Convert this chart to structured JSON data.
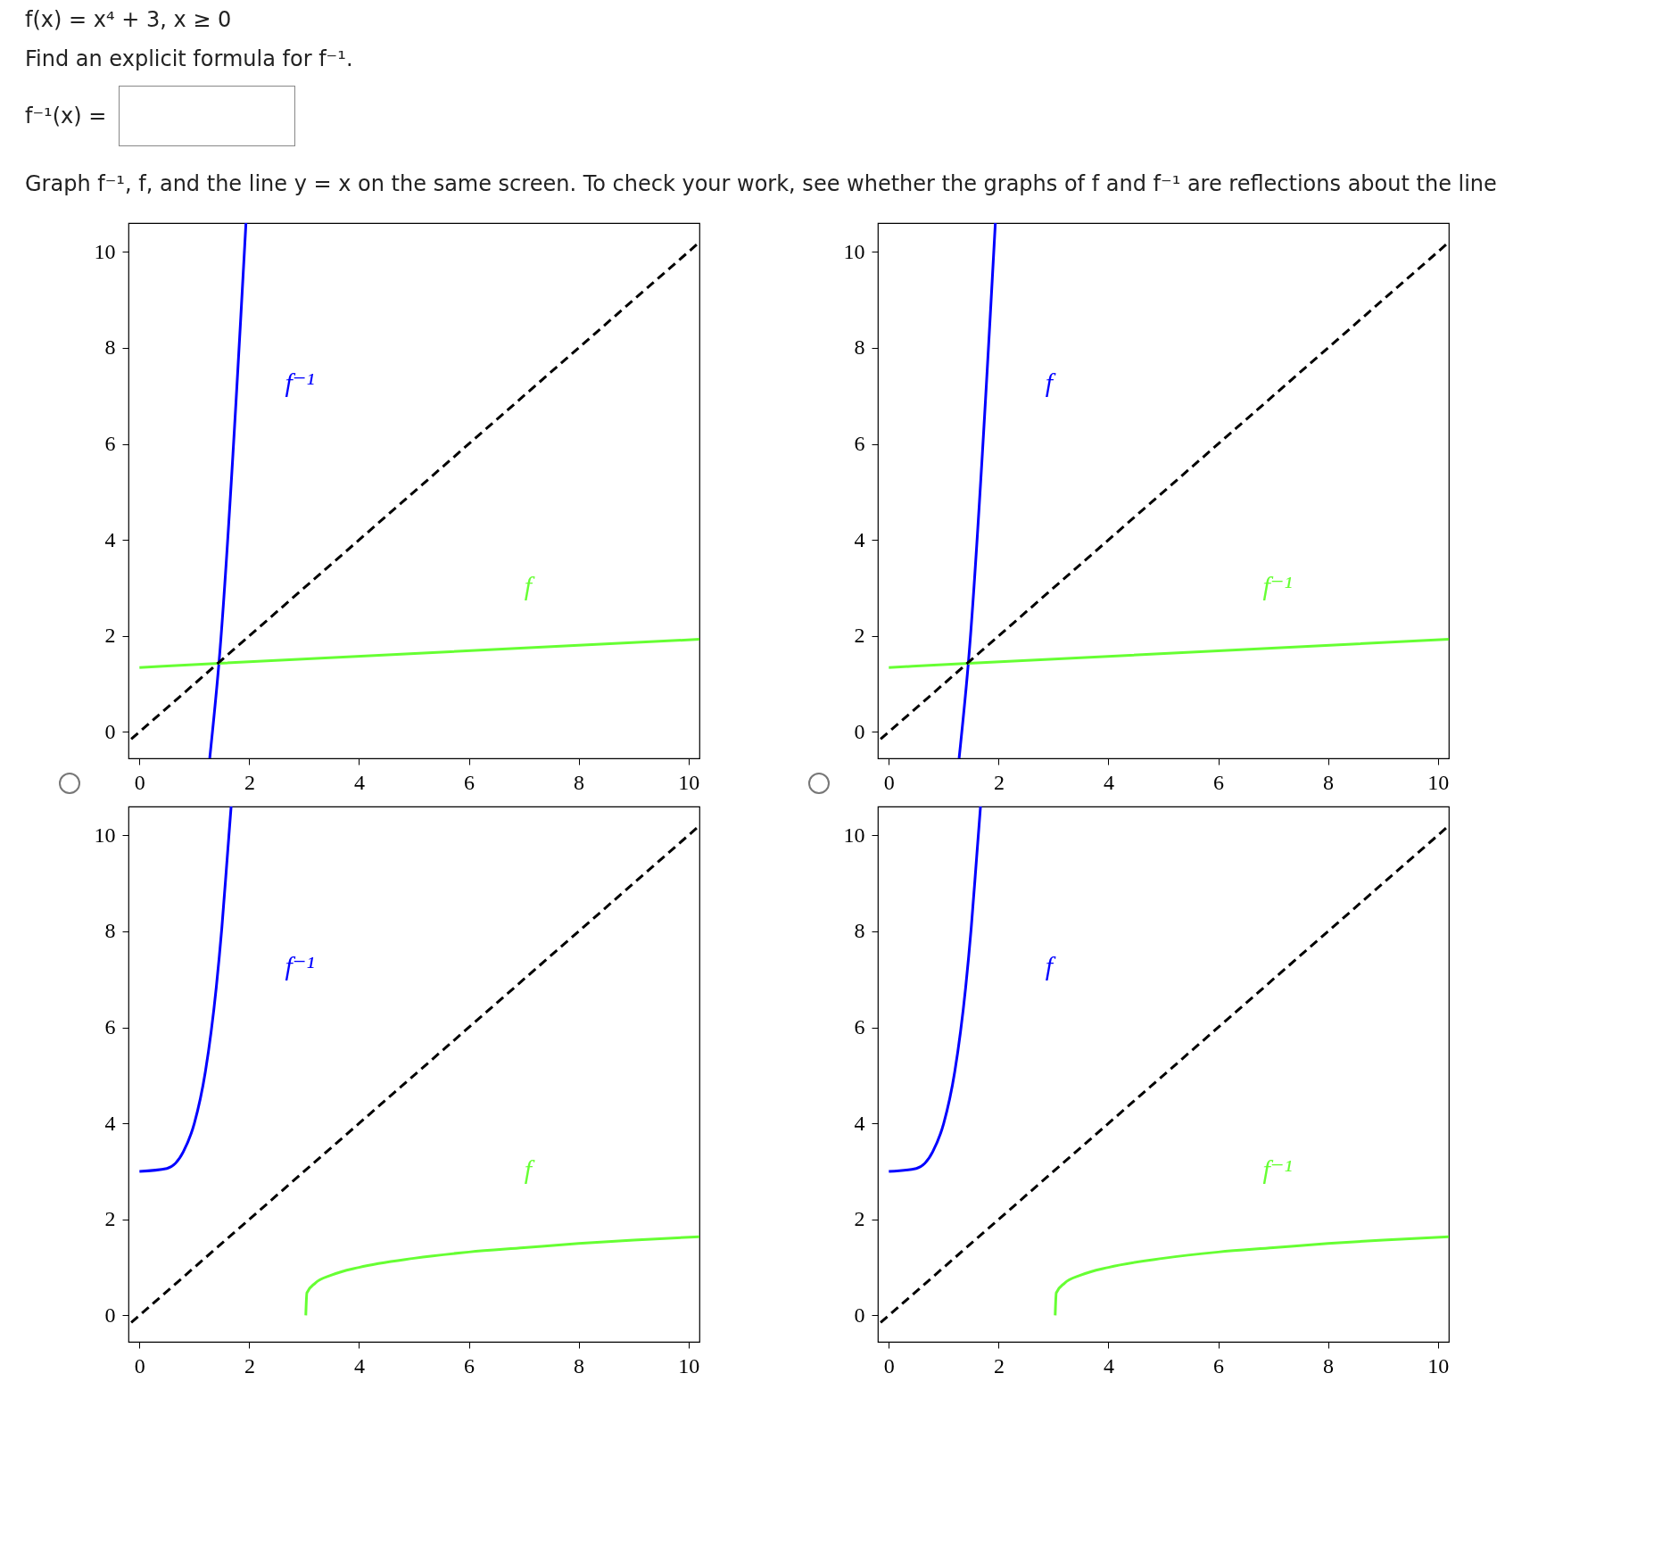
{
  "chart_data": [
    {
      "type": "other",
      "annotations": [
        "f(x) = x⁴ + 3,   x ≥ 0",
        "Find an explicit formula for f⁻¹.",
        "f⁻¹(x) =",
        "Graph f⁻¹, f, and the line y = x on the same screen. To check your work, see whether the graphs of f and f⁻¹ are reflections about the line"
      ]
    },
    {
      "type": "line",
      "xlim": [
        -0.2,
        10.2
      ],
      "ylim": [
        -0.55,
        10.6
      ],
      "xticks": [
        0,
        2,
        4,
        6,
        8,
        10
      ],
      "yticks": [
        0,
        2,
        4,
        6,
        8,
        10
      ],
      "series": [
        {
          "name": "f⁻¹",
          "color": "#0000ff",
          "x": [
            1.28,
            1.45,
            1.94
          ],
          "values": [
            -0.55,
            1.46,
            10.6
          ]
        },
        {
          "name": "f",
          "color": "#66ff33",
          "x": [
            0,
            1.45,
            10.2
          ],
          "values": [
            1.34,
            1.43,
            1.93
          ]
        },
        {
          "color": "#000000",
          "line_style": "dashed",
          "x": [
            -0.15,
            10.2
          ],
          "values": [
            -0.15,
            10.2
          ]
        }
      ]
    },
    {
      "type": "line",
      "xlim": [
        -0.2,
        10.2
      ],
      "ylim": [
        -0.55,
        10.6
      ],
      "xticks": [
        0,
        2,
        4,
        6,
        8,
        10
      ],
      "yticks": [
        0,
        2,
        4,
        6,
        8,
        10
      ],
      "series": [
        {
          "name": "f",
          "color": "#0000ff",
          "x": [
            1.28,
            1.45,
            1.94
          ],
          "values": [
            -0.55,
            1.46,
            10.6
          ]
        },
        {
          "name": "f⁻¹",
          "color": "#66ff33",
          "x": [
            0,
            1.45,
            10.2
          ],
          "values": [
            1.34,
            1.43,
            1.93
          ]
        },
        {
          "color": "#000000",
          "line_style": "dashed",
          "x": [
            -0.15,
            10.2
          ],
          "values": [
            -0.15,
            10.2
          ]
        }
      ]
    },
    {
      "type": "line",
      "xlim": [
        -0.2,
        10.2
      ],
      "ylim": [
        -0.55,
        10.6
      ],
      "xticks": [
        0,
        2,
        4,
        6,
        8,
        10
      ],
      "yticks": [
        0,
        2,
        4,
        6,
        8,
        10
      ],
      "series": [
        {
          "name": "f⁻¹",
          "color": "#0000ff",
          "x": [
            0,
            0.5,
            0.8,
            1,
            1.2,
            1.4,
            1.5,
            1.6,
            1.67
          ],
          "values": [
            3,
            3.06,
            3.41,
            4,
            5.07,
            6.84,
            8.06,
            9.55,
            10.6
          ]
        },
        {
          "name": "f",
          "color": "#66ff33",
          "x": [
            3.03,
            3.05,
            3.2,
            3.5,
            4,
            5,
            6,
            7,
            8,
            9,
            10.2
          ],
          "values": [
            0,
            0.47,
            0.67,
            0.84,
            1,
            1.19,
            1.32,
            1.41,
            1.5,
            1.57,
            1.64
          ]
        },
        {
          "color": "#000000",
          "line_style": "dashed",
          "x": [
            -0.15,
            10.2
          ],
          "values": [
            -0.15,
            10.2
          ]
        }
      ]
    },
    {
      "type": "line",
      "xlim": [
        -0.2,
        10.2
      ],
      "ylim": [
        -0.55,
        10.6
      ],
      "xticks": [
        0,
        2,
        4,
        6,
        8,
        10
      ],
      "yticks": [
        0,
        2,
        4,
        6,
        8,
        10
      ],
      "series": [
        {
          "name": "f",
          "color": "#0000ff",
          "x": [
            0,
            0.5,
            0.8,
            1,
            1.2,
            1.4,
            1.5,
            1.6,
            1.67
          ],
          "values": [
            3,
            3.06,
            3.41,
            4,
            5.07,
            6.84,
            8.06,
            9.55,
            10.6
          ]
        },
        {
          "name": "f⁻¹",
          "color": "#66ff33",
          "x": [
            3.03,
            3.05,
            3.2,
            3.5,
            4,
            5,
            6,
            7,
            8,
            9,
            10.2
          ],
          "values": [
            0,
            0.47,
            0.67,
            0.84,
            1,
            1.19,
            1.32,
            1.41,
            1.5,
            1.57,
            1.64
          ]
        },
        {
          "color": "#000000",
          "line_style": "dashed",
          "x": [
            -0.15,
            10.2
          ],
          "values": [
            -0.15,
            10.2
          ]
        }
      ]
    }
  ]
}
